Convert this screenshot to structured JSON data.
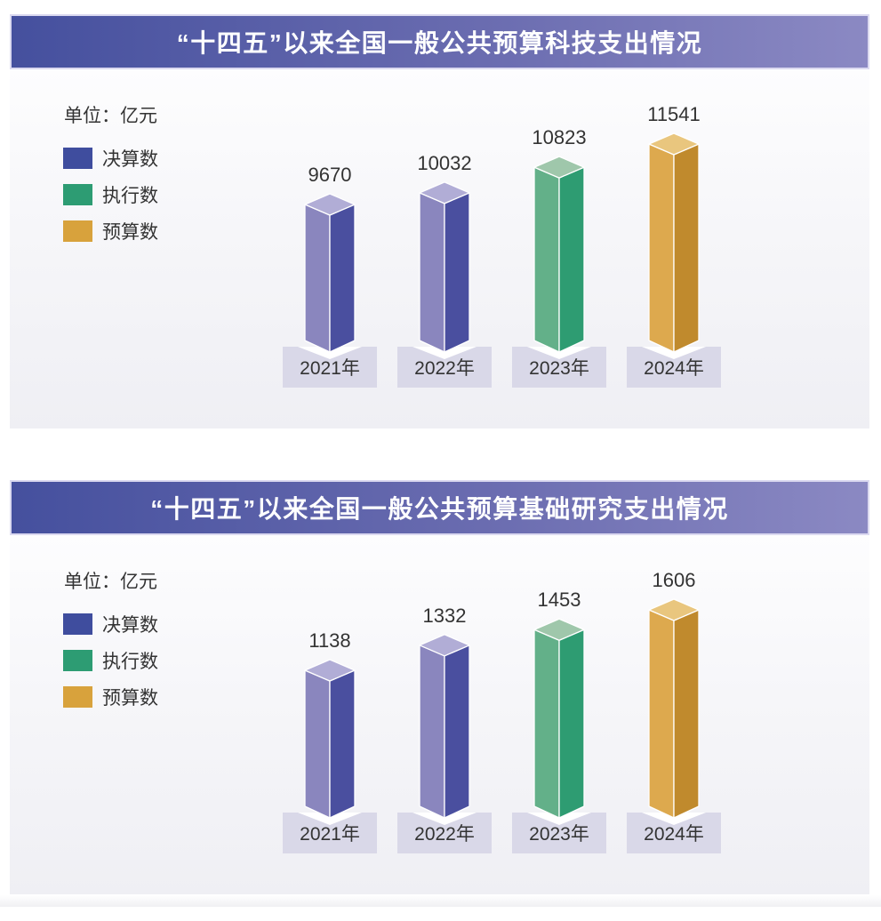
{
  "unit_label": "单位：亿元",
  "legend": [
    {
      "key": "final",
      "label": "决算数"
    },
    {
      "key": "execution",
      "label": "执行数"
    },
    {
      "key": "budget",
      "label": "预算数"
    }
  ],
  "series_colors": {
    "final": {
      "legend": "#3f4d9e",
      "left": "#8a86be",
      "right": "#4a4f9f",
      "top": "#b1add6"
    },
    "execution": {
      "legend": "#2d9c73",
      "left": "#63b089",
      "right": "#2e9c72",
      "top": "#9fc7ab"
    },
    "budget": {
      "legend": "#d8a23c",
      "left": "#dda94e",
      "right": "#c08a2d",
      "top": "#e9c67e"
    }
  },
  "banner": {
    "gradient_left": "#45509e",
    "gradient_right": "#8b89c3",
    "text_color": "#ffffff"
  },
  "year_box": {
    "fill": "#d9d8e8",
    "text_color": "#333333"
  },
  "value_label_color": "#333333",
  "chart_data": [
    {
      "type": "bar",
      "style": "3d-column",
      "title": "“十四五”以来全国一般公共预算科技支出情况",
      "unit": "亿元",
      "categories": [
        "2021年",
        "2022年",
        "2023年",
        "2024年"
      ],
      "values": [
        9670,
        10032,
        10823,
        11541
      ],
      "series_by_category": [
        "final",
        "final",
        "execution",
        "budget"
      ],
      "legend_entries": [
        "决算数",
        "执行数",
        "预算数"
      ],
      "legend_position": "left",
      "grid": false,
      "value_labels": "above-bars"
    },
    {
      "type": "bar",
      "style": "3d-column",
      "title": "“十四五”以来全国一般公共预算基础研究支出情况",
      "unit": "亿元",
      "categories": [
        "2021年",
        "2022年",
        "2023年",
        "2024年"
      ],
      "values": [
        1138,
        1332,
        1453,
        1606
      ],
      "series_by_category": [
        "final",
        "final",
        "execution",
        "budget"
      ],
      "legend_entries": [
        "决算数",
        "执行数",
        "预算数"
      ],
      "legend_position": "left",
      "grid": false,
      "value_labels": "above-bars"
    }
  ]
}
